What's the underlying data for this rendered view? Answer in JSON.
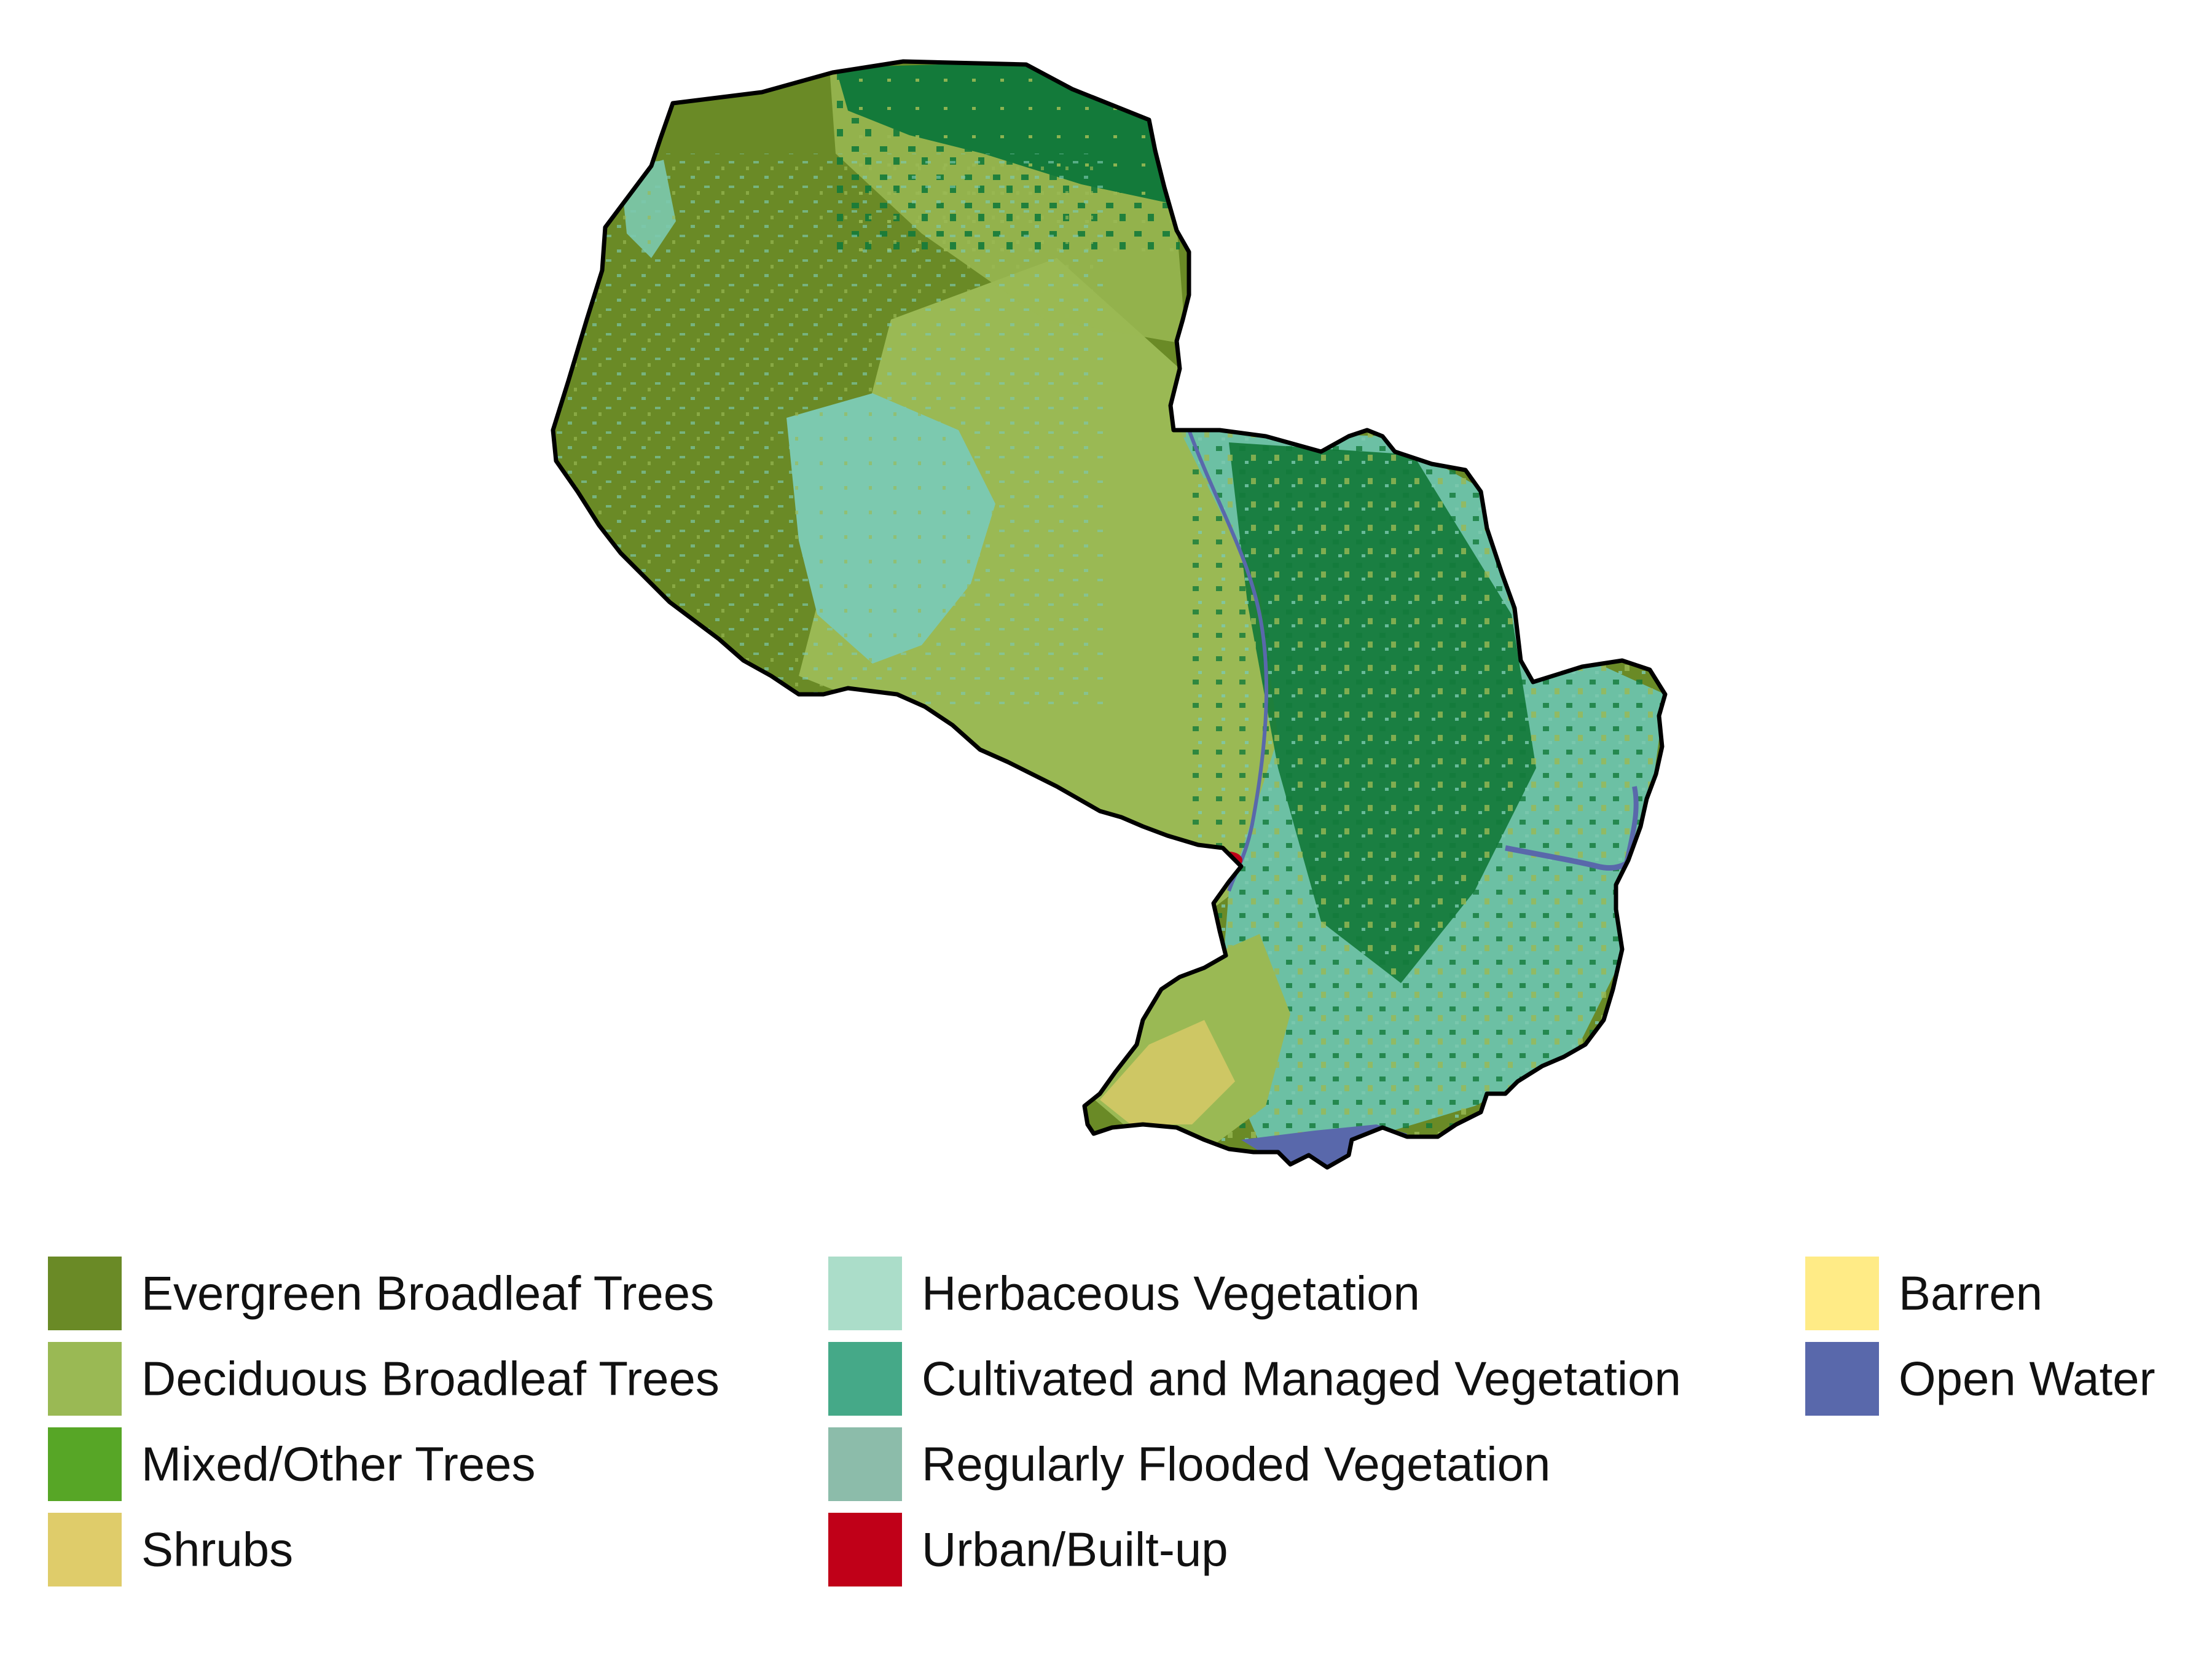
{
  "legend": {
    "columns": [
      [
        {
          "label": "Evergreen Broadleaf Trees",
          "color": "#6a8a26",
          "key": "evergreen-broadleaf-trees"
        },
        {
          "label": "Deciduous Broadleaf Trees",
          "color": "#9ab954",
          "key": "deciduous-broadleaf-trees"
        },
        {
          "label": "Mixed/Other Trees",
          "color": "#57a626",
          "key": "mixed-other-trees"
        },
        {
          "label": "Shrubs",
          "color": "#dfcc6a",
          "key": "shrubs"
        }
      ],
      [
        {
          "label": "Herbaceous Vegetation",
          "color": "#abddc9",
          "key": "herbaceous-vegetation"
        },
        {
          "label": "Cultivated and Managed Vegetation",
          "color": "#45a988",
          "key": "cultivated-managed-vegetation"
        },
        {
          "label": "Regularly Flooded Vegetation",
          "color": "#8cbcaa",
          "key": "regularly-flooded-vegetation"
        },
        {
          "label": "Urban/Built-up",
          "color": "#c00018",
          "key": "urban-built-up"
        }
      ],
      [
        {
          "label": "Barren",
          "color": "#ffeb86",
          "key": "barren"
        },
        {
          "label": "Open Water",
          "color": "#5968ab",
          "key": "open-water"
        }
      ]
    ]
  },
  "map": {
    "region_fill_colors": {
      "evergreen": "#6a8a26",
      "deciduous": "#9ab954",
      "dense_forest": "#137a3a",
      "cultivated": "#6cc0a4",
      "herbaceous": "#7cc9af",
      "shrubs": "#dfcc6a",
      "water": "#5968ab",
      "urban": "#c00018",
      "border": "#000000"
    }
  }
}
